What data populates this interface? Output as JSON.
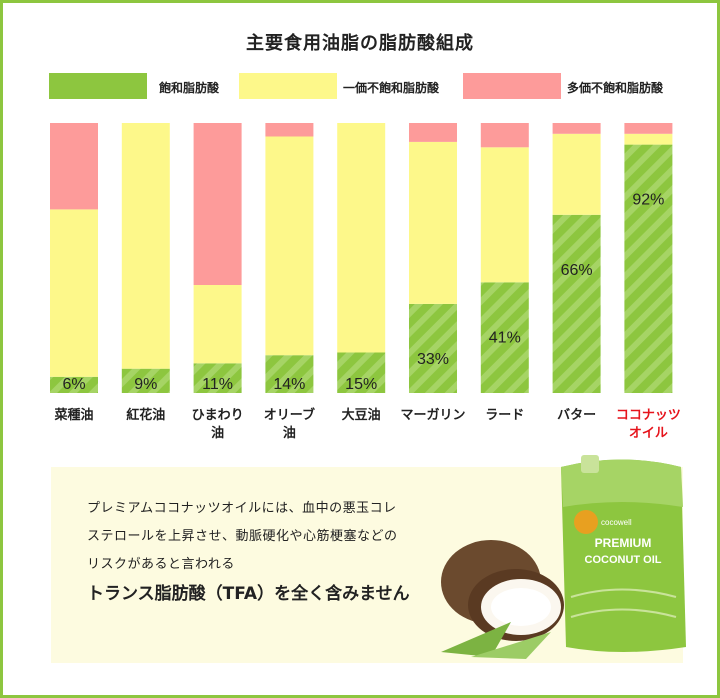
{
  "title": "主要食用油脂の脂肪酸組成",
  "legend": [
    {
      "label": "飽和脂肪酸",
      "color": "#8dc63f"
    },
    {
      "label": "一価不飽和脂肪酸",
      "color": "#fdf88a"
    },
    {
      "label": "多価不飽和脂肪酸",
      "color": "#fd9b9a"
    }
  ],
  "chart_data": {
    "type": "bar",
    "stacked": true,
    "ylim": [
      0,
      100
    ],
    "categories": [
      [
        "菜種油"
      ],
      [
        "紅花油"
      ],
      [
        "ひまわり",
        "油"
      ],
      [
        "オリーブ",
        "油"
      ],
      [
        "大豆油"
      ],
      [
        "マーガリン"
      ],
      [
        "ラード"
      ],
      [
        "バター"
      ],
      [
        "ココナッツ",
        "オイル"
      ]
    ],
    "highlight_category_index": 8,
    "series": [
      {
        "name": "飽和脂肪酸",
        "color": "#8dc63f",
        "values": [
          6,
          9,
          11,
          14,
          15,
          33,
          41,
          66,
          92
        ]
      },
      {
        "name": "一価不飽和脂肪酸",
        "color": "#fdf88a",
        "values": [
          62,
          91,
          29,
          81,
          85,
          60,
          50,
          30,
          4
        ]
      },
      {
        "name": "多価不飽和脂肪酸",
        "color": "#fd9b9a",
        "values": [
          32,
          0,
          60,
          5,
          0,
          7,
          9,
          4,
          4
        ]
      }
    ],
    "data_labels": [
      "6%",
      "9%",
      "11%",
      "14%",
      "15%",
      "33%",
      "41%",
      "66%",
      "92%"
    ]
  },
  "info": {
    "lines": [
      "プレミアムココナッツオイルには、血中の悪玉コレ",
      "ステロールを上昇させ、動脈硬化や心筋梗塞などの",
      "リスクがあると言われる"
    ],
    "emphasis": "トランス脂肪酸（TFA）を全く含みません"
  },
  "product": {
    "brand": "cocowell",
    "line1": "PREMIUM",
    "line2": "COCONUT OIL"
  }
}
